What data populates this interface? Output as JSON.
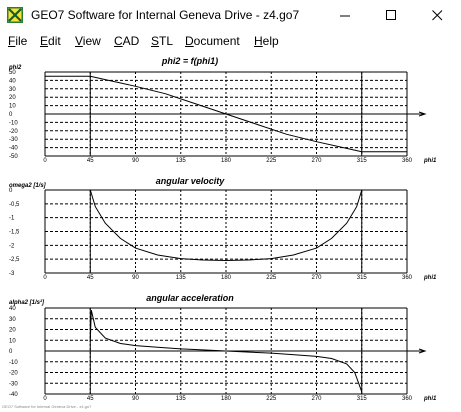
{
  "window": {
    "title": "GEO7  Software for Internal Geneva Drive  -  z4.go7",
    "minimize_icon": "minimize-icon",
    "maximize_icon": "maximize-icon",
    "close_icon": "close-icon"
  },
  "menu": {
    "items": [
      {
        "label": "File",
        "mnemonic": "F",
        "rest": "ile"
      },
      {
        "label": "Edit",
        "mnemonic": "E",
        "rest": "dit"
      },
      {
        "label": "View",
        "mnemonic": "V",
        "rest": "iew"
      },
      {
        "label": "CAD",
        "mnemonic": "C",
        "rest": "AD"
      },
      {
        "label": "STL",
        "mnemonic": "S",
        "rest": "TL"
      },
      {
        "label": "Document",
        "mnemonic": "D",
        "rest": "ocument"
      },
      {
        "label": "Help",
        "mnemonic": "H",
        "rest": "elp"
      }
    ]
  },
  "colors": {
    "grid": "#000000",
    "curve": "#000000",
    "axis": "#000000",
    "background": "#ffffff"
  },
  "chart_data": [
    {
      "type": "line",
      "title": "phi2 = f(phi1)",
      "xlabel": "phi1",
      "ylabel": "phi2",
      "xlim": [
        0,
        360
      ],
      "ylim": [
        -50,
        50
      ],
      "x_ticks": [
        "0",
        "45",
        "90",
        "135",
        "180",
        "225",
        "270",
        "315",
        "360"
      ],
      "y_ticks": [
        "50",
        "40",
        "30",
        "20",
        "10",
        "0",
        "-10",
        "-20",
        "-30",
        "-40",
        "-50"
      ],
      "series": [
        {
          "x": [
            0,
            45,
            60,
            90,
            120,
            150,
            180,
            210,
            240,
            270,
            300,
            315,
            360
          ],
          "y": [
            45,
            45,
            41,
            33,
            24,
            12,
            0,
            -12,
            -24,
            -33,
            -41,
            -45,
            -45
          ]
        }
      ]
    },
    {
      "type": "line",
      "title": "angular velocity",
      "xlabel": "phi1",
      "ylabel": "omega2 [1/s]",
      "xlim": [
        0,
        360
      ],
      "ylim": [
        -3,
        0
      ],
      "x_ticks": [
        "0",
        "45",
        "90",
        "135",
        "180",
        "225",
        "270",
        "315",
        "360"
      ],
      "y_ticks": [
        "0",
        "-0,5",
        "-1",
        "-1,5",
        "-2",
        "-2,5",
        "-3"
      ],
      "series": [
        {
          "x": [
            45,
            50,
            60,
            75,
            90,
            112,
            135,
            157,
            180,
            202,
            225,
            247,
            270,
            285,
            300,
            310,
            315
          ],
          "y": [
            0,
            -0.6,
            -1.2,
            -1.75,
            -2.1,
            -2.35,
            -2.48,
            -2.53,
            -2.55,
            -2.53,
            -2.48,
            -2.35,
            -2.1,
            -1.75,
            -1.2,
            -0.6,
            0
          ]
        }
      ]
    },
    {
      "type": "line",
      "title": "angular acceleration",
      "xlabel": "phi1",
      "ylabel": "alpha2 [1/s²]",
      "xlim": [
        0,
        360
      ],
      "ylim": [
        -40,
        40
      ],
      "x_ticks": [
        "0",
        "45",
        "90",
        "135",
        "180",
        "225",
        "270",
        "315",
        "360"
      ],
      "y_ticks": [
        "40",
        "30",
        "20",
        "10",
        "0",
        "-10",
        "-20",
        "-30",
        "-40"
      ],
      "series": [
        {
          "x": [
            45,
            46,
            50,
            60,
            75,
            90,
            112,
            135,
            157,
            180
          ],
          "y": [
            10,
            38,
            22,
            12,
            7,
            5,
            3.5,
            2,
            1,
            0
          ]
        },
        {
          "x": [
            180,
            203,
            225,
            248,
            270,
            285,
            300,
            308,
            312,
            315
          ],
          "y": [
            0,
            -1,
            -2,
            -3.5,
            -5,
            -7,
            -12,
            -20,
            -30,
            -38
          ]
        }
      ]
    }
  ],
  "status_text": "GEO7 Software for Internal Geneva Drive - z4.go7"
}
